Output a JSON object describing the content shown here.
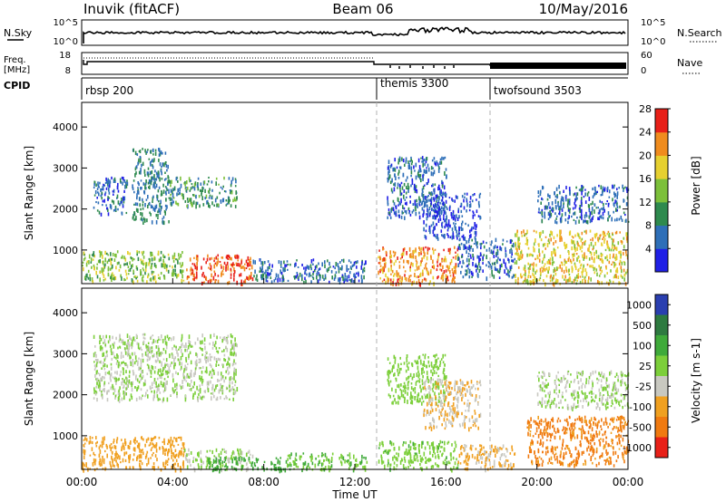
{
  "header": {
    "station": "Inuvik (fitACF)",
    "beam": "Beam 06",
    "date": "10/May/2016"
  },
  "top_panels": {
    "nsky_label": "N.Sky",
    "nsky_ticks_left": [
      "10^5",
      "10^0"
    ],
    "nsearch_label": "N.Search",
    "nsearch_ticks_right": [
      "10^5",
      "10^0"
    ],
    "freq_label_1": "Freq.",
    "freq_label_2": "[MHz]",
    "freq_ticks": [
      "18",
      "8"
    ],
    "nave_label": "Nave",
    "nave_ticks": [
      "60",
      "0"
    ],
    "cpid_label": "CPID",
    "cpid_segments": [
      {
        "name": "rbsp 200",
        "start_hour": 0
      },
      {
        "name": "themis 3300",
        "start_hour": 13
      },
      {
        "name": "twofsound 3503",
        "start_hour": 18
      }
    ]
  },
  "chart_data": [
    {
      "type": "heatmap",
      "title": "",
      "xlabel": "",
      "ylabel": "Slant Range [km]",
      "xlim_hours": [
        0,
        24
      ],
      "ylim_km": [
        180,
        4600
      ],
      "yticks": [
        "1000",
        "2000",
        "3000",
        "4000"
      ],
      "colorbar": {
        "label": "Power [dB]",
        "ticks": [
          "4",
          "8",
          "12",
          "16",
          "20",
          "24",
          "28"
        ],
        "colors": [
          "#2020e6",
          "#2e6fb8",
          "#2e8a4e",
          "#7cc03a",
          "#e6d030",
          "#f08c1e",
          "#e82018"
        ]
      },
      "scatter_regions": [
        {
          "hours": [
            0.0,
            4.5
          ],
          "km": [
            250,
            1000
          ],
          "value": 16
        },
        {
          "hours": [
            4.5,
            7.5
          ],
          "km": [
            200,
            900
          ],
          "value": 26
        },
        {
          "hours": [
            7.5,
            12.5
          ],
          "km": [
            250,
            800
          ],
          "value": 8
        },
        {
          "hours": [
            13.0,
            16.5
          ],
          "km": [
            200,
            1100
          ],
          "value": 24
        },
        {
          "hours": [
            16.5,
            19.0
          ],
          "km": [
            350,
            1300
          ],
          "value": 8
        },
        {
          "hours": [
            19.0,
            24.0
          ],
          "km": [
            200,
            1500
          ],
          "value": 20
        },
        {
          "hours": [
            0.5,
            2.0
          ],
          "km": [
            1900,
            2800
          ],
          "value": 8
        },
        {
          "hours": [
            2.2,
            3.8
          ],
          "km": [
            1700,
            3500
          ],
          "value": 10
        },
        {
          "hours": [
            3.8,
            6.8
          ],
          "km": [
            2100,
            2800
          ],
          "value": 12
        },
        {
          "hours": [
            13.4,
            16.0
          ],
          "km": [
            1800,
            3300
          ],
          "value": 8
        },
        {
          "hours": [
            15.0,
            17.5
          ],
          "km": [
            1300,
            2400
          ],
          "value": 6
        },
        {
          "hours": [
            20.0,
            24.0
          ],
          "km": [
            1700,
            2600
          ],
          "value": 8
        }
      ]
    },
    {
      "type": "heatmap",
      "title": "",
      "xlabel": "Time UT",
      "ylabel": "Slant Range [km]",
      "xlim_hours": [
        0,
        24
      ],
      "ylim_km": [
        180,
        4600
      ],
      "xticks": [
        "00:00",
        "04:00",
        "08:00",
        "12:00",
        "16:00",
        "20:00",
        "00:00"
      ],
      "yticks": [
        "1000",
        "2000",
        "3000",
        "4000"
      ],
      "colorbar": {
        "label": "Velocity [m s-1]",
        "ticks": [
          "1000",
          "500",
          "100",
          "25",
          "-25",
          "-100",
          "-500",
          "-1000"
        ],
        "colors": [
          "#2a3fb0",
          "#2e7a40",
          "#3faa3a",
          "#7ccf3a",
          "#c8c8c0",
          "#f0a020",
          "#f07a10",
          "#e82018"
        ]
      },
      "scatter_regions": [
        {
          "hours": [
            0.0,
            4.5
          ],
          "km": [
            200,
            1000
          ],
          "value": -150
        },
        {
          "hours": [
            4.5,
            7.5
          ],
          "km": [
            200,
            700
          ],
          "value": 0
        },
        {
          "hours": [
            5.5,
            9.0
          ],
          "km": [
            180,
            500
          ],
          "value": 120
        },
        {
          "hours": [
            9.0,
            12.5
          ],
          "km": [
            200,
            600
          ],
          "value": 60
        },
        {
          "hours": [
            13.0,
            16.5
          ],
          "km": [
            200,
            900
          ],
          "value": 40
        },
        {
          "hours": [
            16.5,
            19.0
          ],
          "km": [
            200,
            800
          ],
          "value": -80
        },
        {
          "hours": [
            19.5,
            24.0
          ],
          "km": [
            300,
            1500
          ],
          "value": -400
        },
        {
          "hours": [
            0.5,
            6.8
          ],
          "km": [
            1900,
            3500
          ],
          "value": 0
        },
        {
          "hours": [
            13.4,
            16.0
          ],
          "km": [
            1800,
            3000
          ],
          "value": 30
        },
        {
          "hours": [
            15.0,
            17.5
          ],
          "km": [
            1200,
            2400
          ],
          "value": -60
        },
        {
          "hours": [
            20.0,
            24.0
          ],
          "km": [
            1700,
            2600
          ],
          "value": 0
        }
      ]
    }
  ]
}
